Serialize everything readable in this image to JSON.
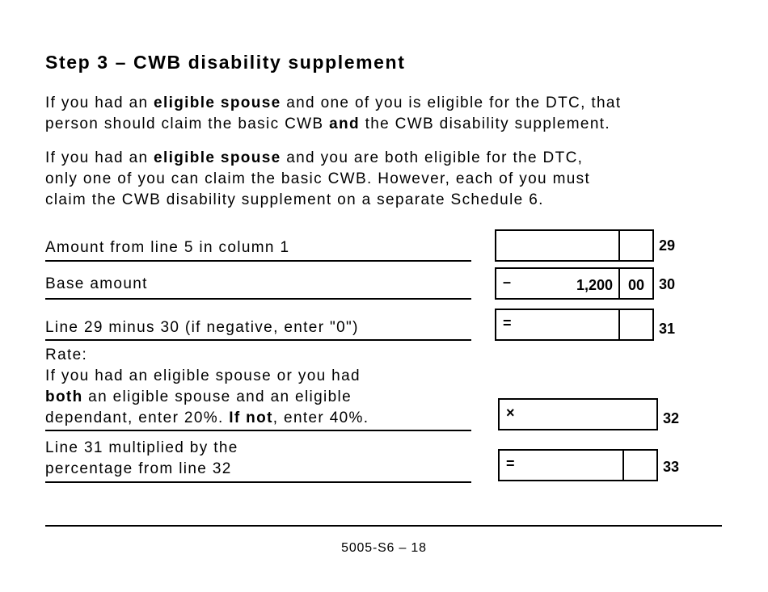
{
  "title": "Step 3 – CWB disability supplement",
  "paragraphs": [
    [
      [
        {
          "text": "If you had an "
        },
        {
          "text": "eligible spouse",
          "bold": true
        },
        {
          "text": " and one of you is eligible for the DTC, that"
        }
      ],
      [
        {
          "text": "person should claim the basic CWB "
        },
        {
          "text": "and",
          "bold": true
        },
        {
          "text": " the CWB disability supplement."
        }
      ]
    ],
    [
      [
        {
          "text": "If you had an "
        },
        {
          "text": "eligible spouse",
          "bold": true
        },
        {
          "text": " and you are both eligible for the DTC,"
        }
      ],
      [
        {
          "text": "only one of you can claim the basic CWB. However, each of you must"
        }
      ],
      [
        {
          "text": "claim the CWB disability supplement on a separate Schedule 6."
        }
      ]
    ]
  ],
  "rows": [
    {
      "label": [
        [
          {
            "text": "Amount from line 5 in column 1"
          }
        ]
      ],
      "line": "29"
    },
    {
      "label": [
        [
          {
            "text": "Base amount"
          }
        ]
      ],
      "symbol": "–",
      "amount": "1,200",
      "cents": "00",
      "line": "30"
    },
    {
      "label": [
        [
          {
            "text": "Line 29 minus 30 (if negative, enter \"0\")"
          }
        ]
      ],
      "symbol": "=",
      "line": "31"
    },
    {
      "label": [
        [
          {
            "text": "Rate:"
          }
        ],
        [
          {
            "text": "If you had an eligible spouse or you had"
          }
        ],
        [
          {
            "text": "both",
            "bold": true
          },
          {
            "text": " an eligible spouse and an eligible"
          }
        ],
        [
          {
            "text": "dependant, enter 20%. "
          },
          {
            "text": "If not",
            "bold": true
          },
          {
            "text": ", enter 40%."
          }
        ]
      ],
      "symbol": "×",
      "line": "32"
    },
    {
      "label": [
        [
          {
            "text": "Line 31 multiplied by the"
          }
        ],
        [
          {
            "text": "percentage from line 32"
          }
        ]
      ],
      "symbol": "=",
      "line": "33"
    }
  ],
  "footer": "5005-S6 – 18"
}
